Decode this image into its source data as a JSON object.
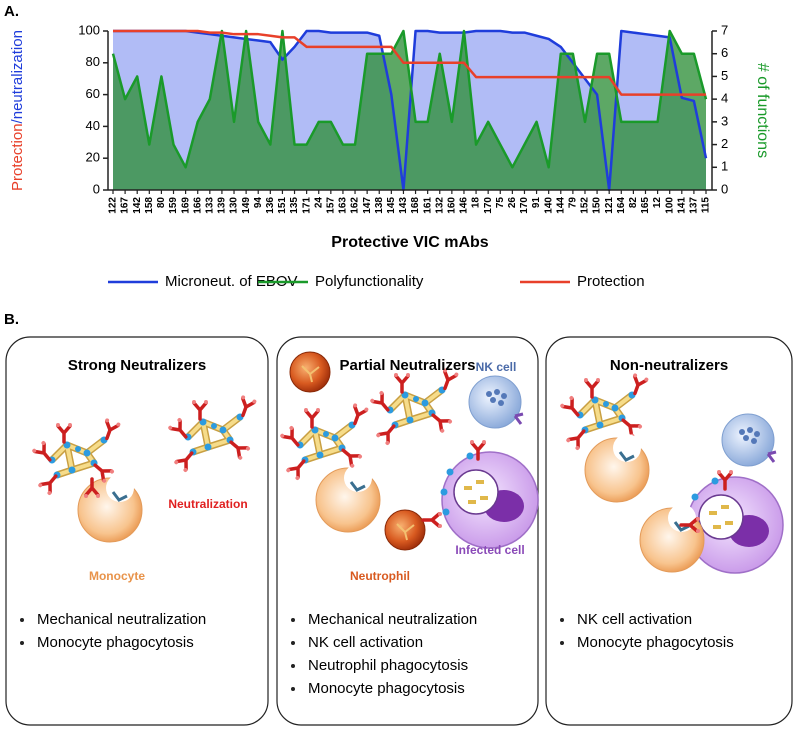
{
  "panel_labels": [
    "A.",
    "B."
  ],
  "chart_data": {
    "type": "area-line",
    "xlabel": "Protective VIC mAbs",
    "ylabel_parts": [
      {
        "text": "Protection",
        "color": "#e8402a"
      },
      {
        "text": "/neutralization",
        "color": "#1f3ddb"
      }
    ],
    "y2label": "# of functions",
    "y2label_color": "#1a9a2a",
    "categories": [
      "122",
      "167",
      "142",
      "158",
      "80",
      "159",
      "169",
      "166",
      "133",
      "139",
      "130",
      "149",
      "94",
      "136",
      "151",
      "135",
      "171",
      "24",
      "157",
      "163",
      "162",
      "147",
      "138",
      "145",
      "143",
      "168",
      "161",
      "132",
      "160",
      "146",
      "18",
      "170",
      "75",
      "26",
      "170",
      "91",
      "140",
      "144",
      "79",
      "152",
      "150",
      "121",
      "164",
      "82",
      "165",
      "12",
      "100",
      "141",
      "137",
      "115"
    ],
    "series": [
      {
        "name": "Microneut. of EBOV",
        "color": "#1f3ddb",
        "fill": "#a9b5f5",
        "axis": "y",
        "values": [
          100,
          100,
          100,
          100,
          100,
          100,
          100,
          99,
          98,
          97,
          96,
          95,
          94,
          93,
          82,
          90,
          100,
          100,
          99,
          99,
          99,
          99,
          97,
          60,
          0,
          100,
          100,
          99,
          99,
          99,
          100,
          100,
          100,
          99,
          99,
          97,
          95,
          90,
          80,
          70,
          60,
          0,
          100,
          99,
          98,
          97,
          96,
          58,
          56,
          20
        ]
      },
      {
        "name": "Polyfunctionality",
        "color": "#1a9a2a",
        "fill": "#2f8f3a",
        "axis": "y2",
        "values": [
          6,
          4,
          5,
          2,
          5,
          2,
          1,
          3,
          4,
          7,
          3,
          7,
          3,
          2,
          7,
          2,
          2,
          3,
          3,
          2,
          2,
          6,
          6,
          6,
          7,
          3,
          3,
          6,
          3,
          7,
          2,
          3,
          2,
          1,
          2,
          3,
          1,
          6,
          6,
          3,
          6,
          6,
          3,
          3,
          3,
          3,
          7,
          6,
          6,
          4
        ]
      },
      {
        "name": "Protection",
        "color": "#e8402a",
        "axis": "y",
        "values": [
          100,
          100,
          100,
          100,
          100,
          100,
          100,
          100,
          99,
          99,
          98,
          98,
          98,
          97,
          96,
          96,
          90,
          90,
          90,
          90,
          90,
          90,
          90,
          90,
          80,
          80,
          80,
          80,
          80,
          80,
          71,
          71,
          71,
          71,
          71,
          71,
          71,
          71,
          71,
          71,
          71,
          71,
          60,
          60,
          60,
          60,
          60,
          60,
          60,
          60
        ]
      }
    ],
    "ylim": [
      0,
      100
    ],
    "yticks": [
      0,
      20,
      40,
      60,
      80,
      100
    ],
    "y2lim": [
      0,
      7
    ],
    "y2ticks": [
      0,
      1,
      2,
      3,
      4,
      5,
      6,
      7
    ]
  },
  "panels": [
    {
      "title": "Strong Neutralizers",
      "labels": [
        "Neutralization",
        "Monocyte"
      ],
      "bullets": [
        "Mechanical neutralization",
        "Monocyte phagocytosis"
      ]
    },
    {
      "title": "Partial Neutralizers",
      "labels": [
        "NK cell",
        "Infected cell",
        "Neutrophil"
      ],
      "bullets": [
        "Mechanical neutralization",
        "NK cell activation",
        "Neutrophil phagocytosis",
        "Monocyte phagocytosis"
      ]
    },
    {
      "title": "Non-neutralizers",
      "labels": [],
      "bullets": [
        "NK cell activation",
        "Monocyte phagocytosis"
      ]
    }
  ]
}
